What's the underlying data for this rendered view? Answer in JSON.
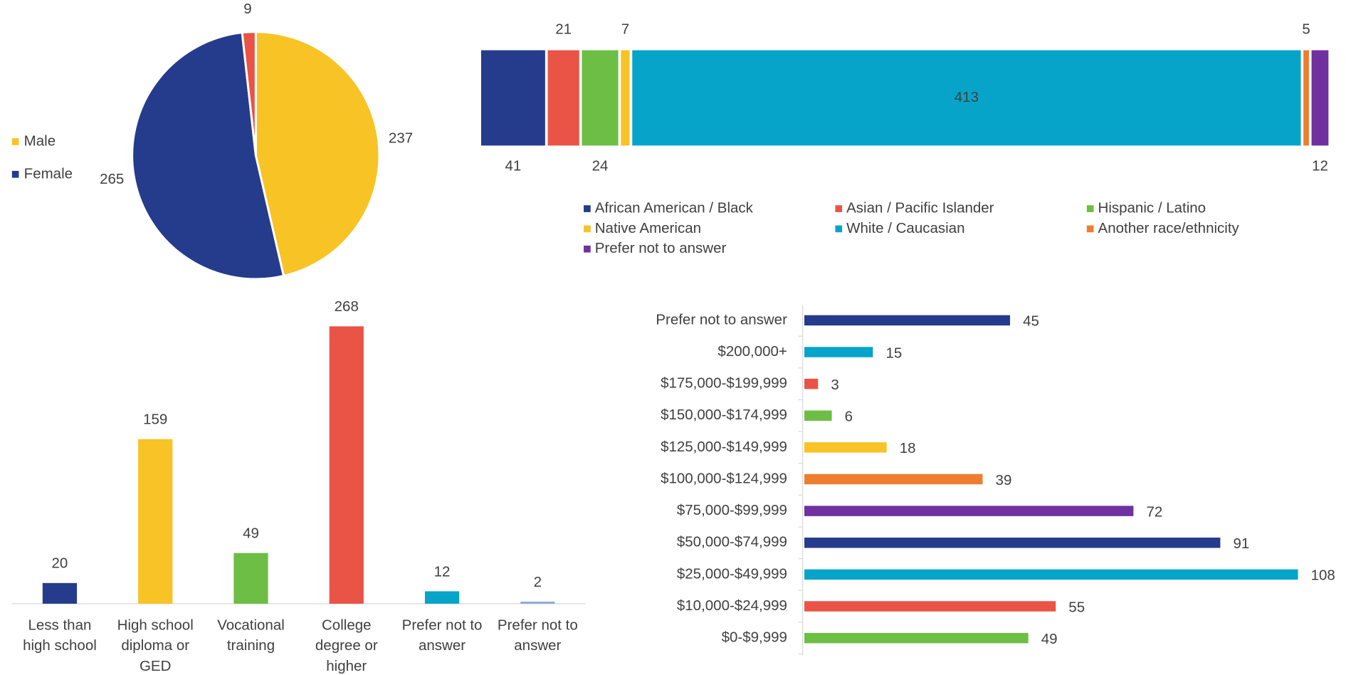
{
  "chart_data": [
    {
      "type": "pie",
      "categories": [
        "Male",
        "Female",
        null
      ],
      "values": [
        237,
        265,
        9
      ],
      "colors": [
        "#F8C325",
        "#253C8C",
        "#EA5446"
      ]
    },
    {
      "type": "stacked-bar",
      "series": [
        {
          "name": "African American / Black",
          "color": "#253C8C",
          "values": [
            41
          ]
        },
        {
          "name": "Asian / Pacific Islander",
          "color": "#EA5446",
          "values": [
            21
          ]
        },
        {
          "name": "Hispanic / Latino",
          "color": "#6DBE45",
          "values": [
            24
          ]
        },
        {
          "name": "Native American",
          "color": "#F8C325",
          "values": [
            7
          ]
        },
        {
          "name": "White / Caucasian",
          "color": "#07A4C9",
          "values": [
            413
          ]
        },
        {
          "name": "Another race/ethnicity",
          "color": "#EE7D30",
          "values": [
            5
          ]
        },
        {
          "name": "Prefer not to answer",
          "color": "#7030A0",
          "values": [
            12
          ]
        }
      ]
    },
    {
      "type": "column",
      "categories": [
        "Less than high school",
        "High school diploma or GED",
        "Vocational training",
        "College degree or higher",
        "Prefer not to answer",
        "Prefer not to answer"
      ],
      "values": [
        20,
        159,
        49,
        268,
        12,
        2
      ],
      "colors": [
        "#253C8C",
        "#F8C325",
        "#6DBE45",
        "#EA5446",
        "#07A4C9",
        "#8FAADC"
      ]
    },
    {
      "type": "hbar",
      "categories": [
        "Prefer not to answer",
        "$200,000+",
        "$175,000-$199,999",
        "$150,000-$174,999",
        "$125,000-$149,999",
        "$100,000-$124,999",
        "$75,000-$99,999",
        "$50,000-$74,999",
        "$25,000-$49,999",
        "$10,000-$24,999",
        "$0-$9,999"
      ],
      "values": [
        45,
        15,
        3,
        6,
        18,
        39,
        72,
        91,
        108,
        55,
        49
      ],
      "colors": [
        "#253C8C",
        "#07A4C9",
        "#EA5446",
        "#6DBE45",
        "#F8C325",
        "#EE7D30",
        "#7030A0",
        "#253C8C",
        "#07A4C9",
        "#EA5446",
        "#6DBE45"
      ]
    }
  ]
}
